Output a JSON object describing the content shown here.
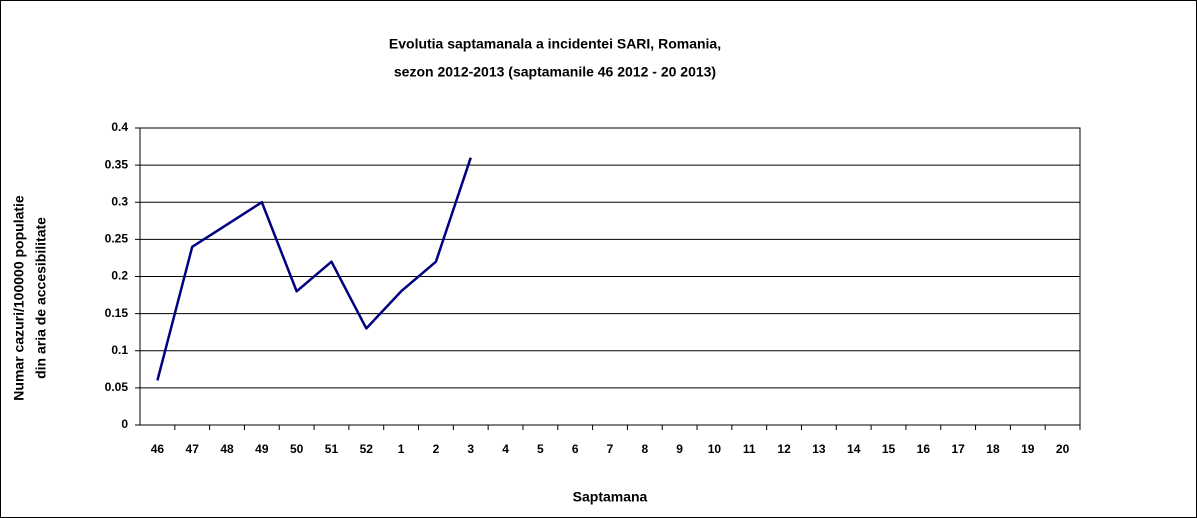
{
  "chart_data": {
    "type": "line",
    "title": [
      "Evolutia saptamanala a incidentei SARI, Romania,",
      "sezon 2012-2013 (saptamanile 46 2012 - 20 2013)"
    ],
    "xlabel": "Saptamana",
    "ylabel": [
      "Numar cazuri/100000 populatie",
      "din aria de accesibilitate"
    ],
    "categories": [
      "46",
      "47",
      "48",
      "49",
      "50",
      "51",
      "52",
      "1",
      "2",
      "3",
      "4",
      "5",
      "6",
      "7",
      "8",
      "9",
      "10",
      "11",
      "12",
      "13",
      "14",
      "15",
      "16",
      "17",
      "18",
      "19",
      "20"
    ],
    "series": [
      {
        "name": "SARI",
        "color": "#000080",
        "values": [
          0.06,
          0.24,
          0.27,
          0.3,
          0.18,
          0.22,
          0.13,
          0.18,
          0.22,
          0.36,
          null,
          null,
          null,
          null,
          null,
          null,
          null,
          null,
          null,
          null,
          null,
          null,
          null,
          null,
          null,
          null,
          null
        ]
      }
    ],
    "ylim": [
      0,
      0.4
    ],
    "yticks": [
      0,
      0.05,
      0.1,
      0.15,
      0.2,
      0.25,
      0.3,
      0.35,
      0.4
    ],
    "grid": true
  }
}
